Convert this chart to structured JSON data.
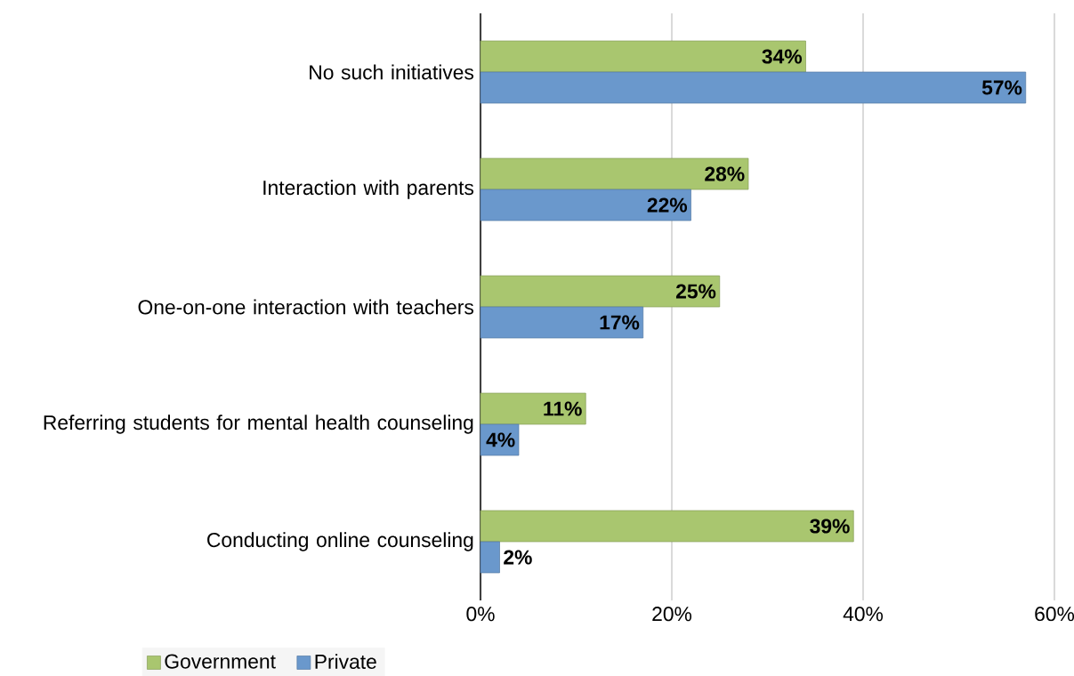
{
  "chart_data": {
    "type": "bar",
    "orientation": "horizontal",
    "categories": [
      "No such initiatives",
      "Interaction with parents",
      "One-on-one interaction with teachers",
      "Referring students for mental health counseling",
      "Conducting online counseling"
    ],
    "series": [
      {
        "name": "Government",
        "color": "#a9c66f",
        "values": [
          34,
          28,
          25,
          11,
          39
        ],
        "value_labels": [
          "34%",
          "28%",
          "25%",
          "11%",
          "39%"
        ]
      },
      {
        "name": "Private",
        "color": "#6a98cc",
        "values": [
          57,
          22,
          17,
          4,
          2
        ],
        "value_labels": [
          "57%",
          "22%",
          "17%",
          "4%",
          "2%"
        ]
      }
    ],
    "xlim": [
      0,
      60
    ],
    "xticks": [
      {
        "value": 0,
        "label": "0%"
      },
      {
        "value": 20,
        "label": "20%"
      },
      {
        "value": 40,
        "label": "40%"
      },
      {
        "value": 60,
        "label": "60%"
      }
    ],
    "grid": "x",
    "legend": "bottom left"
  }
}
